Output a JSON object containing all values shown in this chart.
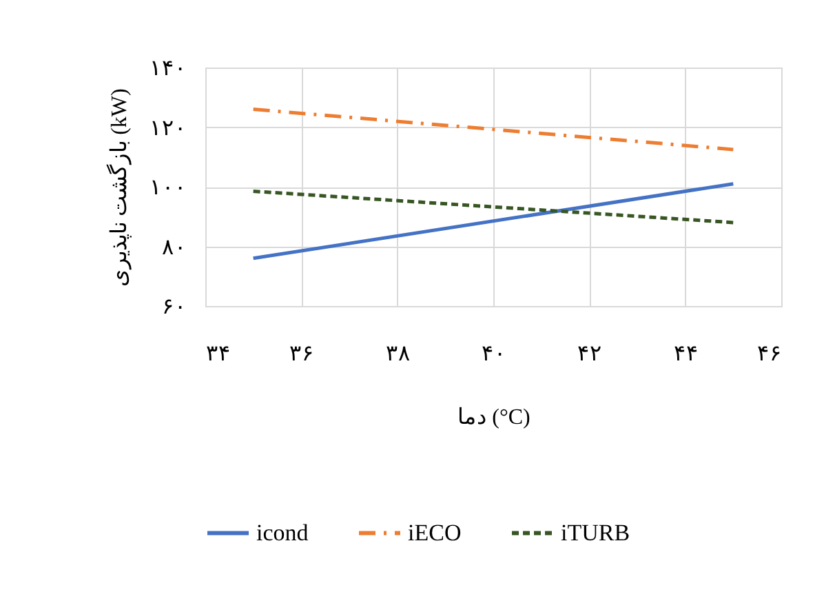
{
  "chart_data": {
    "type": "line",
    "xlabel": "دما (°C)",
    "ylabel": "بازگشت ناپذیری (kW)",
    "x": [
      35,
      45
    ],
    "series": [
      {
        "name": "icond",
        "color": "#4472c4",
        "line_style": "solid",
        "values": [
          76,
          101
        ]
      },
      {
        "name": "iECO",
        "color": "#ed7d31",
        "line_style": "dashdot",
        "values": [
          126,
          112.5
        ]
      },
      {
        "name": "iTURB",
        "color": "#375623",
        "line_style": "dashed",
        "values": [
          98.5,
          88
        ]
      }
    ],
    "xlim": [
      34,
      46
    ],
    "xticks": [
      {
        "value": 34,
        "label": "۳۴"
      },
      {
        "value": 36,
        "label": "۳۶"
      },
      {
        "value": 38,
        "label": "۳۸"
      },
      {
        "value": 40,
        "label": "۴۰"
      },
      {
        "value": 42,
        "label": "۴۲"
      },
      {
        "value": 44,
        "label": "۴۴"
      },
      {
        "value": 46,
        "label": "۴۶"
      }
    ],
    "ylim": [
      60,
      140
    ],
    "yticks": [
      {
        "value": 60,
        "label": "۶۰"
      },
      {
        "value": 80,
        "label": "۸۰"
      },
      {
        "value": 100,
        "label": "۱۰۰"
      },
      {
        "value": 120,
        "label": "۱۲۰"
      },
      {
        "value": 140,
        "label": "۱۴۰"
      }
    ],
    "grid": true,
    "legend": "bottom",
    "marker": "none"
  }
}
